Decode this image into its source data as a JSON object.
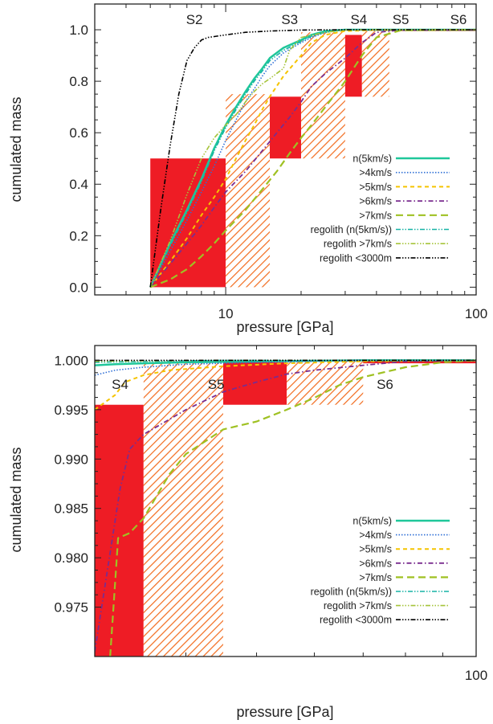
{
  "chart_data": [
    {
      "type": "line",
      "xlabel": "pressure [GPa]",
      "ylabel": "cumulated mass",
      "xscale": "log",
      "xlim": [
        3,
        100
      ],
      "ylim": [
        -0.03,
        1.1
      ],
      "xticks": [
        10,
        100
      ],
      "xticklabels": [
        "10",
        "100"
      ],
      "yticks": [
        0.0,
        0.2,
        0.4,
        0.6,
        0.8,
        1.0
      ],
      "yticklabels": [
        "0.0",
        "0.2",
        "0.4",
        "0.6",
        "0.8",
        "1.0"
      ],
      "legend_position": "bottom-right",
      "stages": [
        {
          "label": "S2",
          "x": 7.5
        },
        {
          "label": "S3",
          "x": 18
        },
        {
          "label": "S4",
          "x": 34
        },
        {
          "label": "S5",
          "x": 50
        },
        {
          "label": "S6",
          "x": 85
        }
      ],
      "stage_boxes": [
        {
          "x0": 5,
          "x1": 10,
          "y0": 0,
          "y1": 0.5,
          "style": "solid"
        },
        {
          "x0": 10,
          "x1": 15,
          "y0": 0,
          "y1": 0.75,
          "style": "hatched"
        },
        {
          "x0": 15,
          "x1": 20,
          "y0": 0.5,
          "y1": 0.74,
          "style": "solid"
        },
        {
          "x0": 20,
          "x1": 30,
          "y0": 0.5,
          "y1": 0.99,
          "style": "hatched"
        },
        {
          "x0": 30,
          "x1": 35,
          "y0": 0.74,
          "y1": 0.98,
          "style": "solid"
        },
        {
          "x0": 35,
          "x1": 45,
          "y0": 0.74,
          "y1": 0.995,
          "style": "hatched"
        },
        {
          "x0": 45,
          "x1": 100,
          "y0": 0.995,
          "y1": 1.0,
          "style": "solid"
        }
      ],
      "series": [
        {
          "name": "n(5km/s)",
          "color": "#1fc79a",
          "dash": "solid",
          "width": 2.5,
          "x": [
            5,
            6,
            7,
            8,
            9,
            10,
            11,
            12,
            13,
            14,
            15,
            17,
            20,
            22,
            25,
            30,
            40,
            100
          ],
          "y": [
            0,
            0.17,
            0.3,
            0.42,
            0.54,
            0.63,
            0.7,
            0.76,
            0.81,
            0.85,
            0.89,
            0.93,
            0.96,
            0.98,
            0.995,
            1.0,
            1.0,
            1.0
          ]
        },
        {
          "name": ">4km/s",
          "color": "#2f6fd6",
          "dash": "1.5,2",
          "width": 1.6,
          "x": [
            5,
            6,
            7,
            8,
            9,
            10,
            11,
            12,
            13,
            14,
            15,
            17,
            20,
            22,
            25,
            30,
            40,
            100
          ],
          "y": [
            0,
            0.14,
            0.26,
            0.37,
            0.47,
            0.57,
            0.65,
            0.72,
            0.77,
            0.82,
            0.86,
            0.91,
            0.95,
            0.97,
            0.99,
            1.0,
            1.0,
            1.0
          ]
        },
        {
          "name": ">5km/s",
          "color": "#f5c400",
          "dash": "5,4",
          "width": 2,
          "x": [
            5,
            6,
            7,
            8,
            9,
            10,
            11,
            12,
            13,
            14,
            15,
            17,
            20,
            22,
            25,
            30,
            40,
            100
          ],
          "y": [
            0,
            0.1,
            0.19,
            0.28,
            0.35,
            0.42,
            0.5,
            0.57,
            0.63,
            0.69,
            0.74,
            0.82,
            0.9,
            0.95,
            0.98,
            0.995,
            0.999,
            1.0
          ]
        },
        {
          "name": ">6km/s",
          "color": "#7a2d8f",
          "dash": "6,3,1.5,3",
          "width": 1.8,
          "x": [
            5,
            6,
            7,
            8,
            9,
            10,
            12,
            14,
            16,
            18,
            20,
            22,
            25,
            30,
            35,
            40,
            50,
            100
          ],
          "y": [
            0,
            0.09,
            0.17,
            0.24,
            0.31,
            0.37,
            0.45,
            0.53,
            0.6,
            0.66,
            0.72,
            0.78,
            0.83,
            0.89,
            0.95,
            0.99,
            0.9985,
            1.0
          ]
        },
        {
          "name": ">7km/s",
          "color": "#9fc122",
          "dash": "9,5",
          "width": 2.2,
          "x": [
            5,
            6,
            7,
            8,
            9,
            10,
            12,
            14,
            16,
            18,
            20,
            22,
            25,
            30,
            35,
            40,
            50,
            100
          ],
          "y": [
            0,
            0.03,
            0.07,
            0.12,
            0.17,
            0.22,
            0.3,
            0.38,
            0.45,
            0.52,
            0.58,
            0.63,
            0.7,
            0.8,
            0.9,
            0.97,
            0.998,
            1.0
          ]
        },
        {
          "name": "regolith (n(5km/s))",
          "color": "#17b3a6",
          "dash": "6,2,1.5,2,1.5,2",
          "width": 1.6,
          "x": [
            5,
            6,
            7,
            8,
            9,
            10,
            11,
            12,
            13,
            14,
            15,
            17,
            20,
            22,
            25,
            30,
            40,
            100
          ],
          "y": [
            0,
            0.16,
            0.29,
            0.41,
            0.53,
            0.62,
            0.69,
            0.75,
            0.8,
            0.84,
            0.88,
            0.92,
            0.955,
            0.975,
            0.99,
            1.0,
            1.0,
            1.0
          ]
        },
        {
          "name": "regolith >7km/s",
          "color": "#a6c43a",
          "dash": "6,2,1.5,2,1.5,2,1.5,2",
          "width": 1.6,
          "x": [
            5,
            6,
            7,
            8,
            9,
            10,
            11,
            12,
            13,
            14,
            15,
            17,
            18,
            20,
            25,
            30,
            40,
            100
          ],
          "y": [
            0,
            0.18,
            0.36,
            0.5,
            0.58,
            0.63,
            0.67,
            0.72,
            0.76,
            0.79,
            0.81,
            0.85,
            0.92,
            0.97,
            0.99,
            0.999,
            1.0,
            1.0
          ]
        },
        {
          "name": "regolith <3000m",
          "color": "#000000",
          "dash": "6,2,1.5,2,1.5,2,1.5,2",
          "width": 1.6,
          "x": [
            5,
            5.5,
            6,
            6.5,
            7,
            7.5,
            8,
            8.5,
            10,
            12,
            15,
            20,
            30,
            100
          ],
          "y": [
            0,
            0.3,
            0.55,
            0.75,
            0.88,
            0.93,
            0.96,
            0.97,
            0.98,
            0.99,
            0.995,
            0.999,
            1.0,
            1.0
          ]
        }
      ]
    },
    {
      "type": "line",
      "xlabel": "pressure [GPa]",
      "ylabel": "cumulated mass",
      "xscale": "log",
      "xlim": [
        30,
        100
      ],
      "ylim": [
        0.97,
        1.0015
      ],
      "xticks": [
        100
      ],
      "xticklabels": [
        "100"
      ],
      "yticks": [
        0.975,
        0.98,
        0.985,
        0.99,
        0.995,
        1.0
      ],
      "yticklabels": [
        "0.975",
        "0.980",
        "0.985",
        "0.990",
        "0.995",
        "1.000"
      ],
      "legend_position": "bottom-right",
      "stages": [
        {
          "label": "S4",
          "x": 32.5
        },
        {
          "label": "S5",
          "x": 44
        },
        {
          "label": "S6",
          "x": 75
        }
      ],
      "stage_boxes": [
        {
          "x0": 30,
          "x1": 35,
          "y0": 0.97,
          "y1": 0.9955,
          "style": "solid"
        },
        {
          "x0": 35,
          "x1": 45,
          "y0": 0.97,
          "y1": 0.9998,
          "style": "hatched"
        },
        {
          "x0": 45,
          "x1": 55,
          "y0": 0.9955,
          "y1": 0.9998,
          "style": "solid"
        },
        {
          "x0": 55,
          "x1": 70,
          "y0": 0.9955,
          "y1": 0.9999,
          "style": "hatched"
        },
        {
          "x0": 70,
          "x1": 100,
          "y0": 0.9997,
          "y1": 1.0,
          "style": "solid"
        }
      ],
      "series": [
        {
          "name": "n(5km/s)",
          "color": "#1fc79a",
          "dash": "solid",
          "width": 2.5,
          "x": [
            30,
            32,
            35,
            40,
            50,
            70,
            100
          ],
          "y": [
            0.9995,
            0.9996,
            0.9997,
            0.9998,
            0.9999,
            1.0,
            1.0
          ]
        },
        {
          "name": ">4km/s",
          "color": "#2f6fd6",
          "dash": "1.5,2",
          "width": 1.6,
          "x": [
            30,
            32,
            35,
            40,
            50,
            60,
            70,
            100
          ],
          "y": [
            0.9985,
            0.999,
            0.9993,
            0.9996,
            0.9998,
            0.9999,
            1.0,
            1.0
          ]
        },
        {
          "name": ">5km/s",
          "color": "#f5c400",
          "dash": "5,4",
          "width": 2,
          "x": [
            30,
            32,
            33,
            35,
            38,
            45,
            55,
            70,
            100
          ],
          "y": [
            0.995,
            0.9965,
            0.9978,
            0.9985,
            0.999,
            0.9994,
            0.9997,
            0.9999,
            1.0
          ]
        },
        {
          "name": ">6km/s",
          "color": "#7a2d8f",
          "dash": "6,3,1.5,3",
          "width": 1.8,
          "x": [
            30,
            32.5,
            33.5,
            35,
            40,
            45,
            50,
            55,
            60,
            70,
            80,
            100
          ],
          "y": [
            0.9705,
            0.987,
            0.991,
            0.9925,
            0.995,
            0.9968,
            0.9978,
            0.9986,
            0.999,
            0.9995,
            0.9999,
            1.0
          ]
        },
        {
          "name": ">7km/s",
          "color": "#9fc122",
          "dash": "9,5",
          "width": 2.2,
          "x": [
            31.5,
            32.3,
            33.5,
            35,
            38,
            40,
            45,
            50,
            55,
            60,
            65,
            70,
            80,
            90,
            100
          ],
          "y": [
            0.97,
            0.982,
            0.9825,
            0.984,
            0.9885,
            0.9905,
            0.993,
            0.9938,
            0.995,
            0.9962,
            0.9975,
            0.9983,
            0.9993,
            0.9998,
            1.0
          ]
        },
        {
          "name": "regolith (n(5km/s))",
          "color": "#17b3a6",
          "dash": "6,2,1.5,2,1.5,2",
          "width": 1.6,
          "x": [
            30,
            35,
            45,
            100
          ],
          "y": [
            0.9998,
            0.9999,
            1.0,
            1.0
          ]
        },
        {
          "name": "regolith >7km/s",
          "color": "#a6c43a",
          "dash": "6,2,1.5,2,1.5,2,1.5,2",
          "width": 1.6,
          "x": [
            30,
            35,
            45,
            100
          ],
          "y": [
            0.9999,
            0.99995,
            1.0,
            1.0
          ]
        },
        {
          "name": "regolith <3000m",
          "color": "#000000",
          "dash": "6,2,1.5,2,1.5,2,1.5,2",
          "width": 1.6,
          "x": [
            30,
            100
          ],
          "y": [
            1.0,
            1.0
          ]
        }
      ]
    }
  ],
  "colors": {
    "solid_box": "#ee1c25",
    "hatch": "#f26b1d"
  }
}
